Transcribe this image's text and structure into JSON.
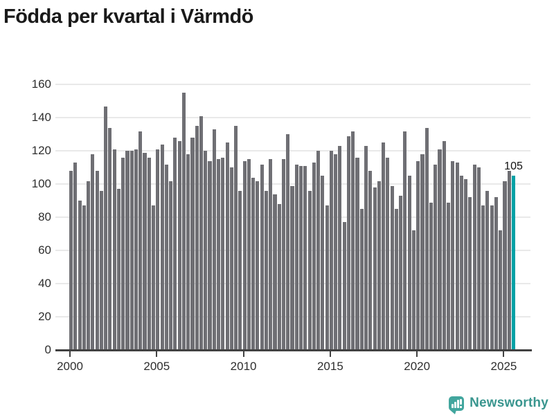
{
  "title": "Födda per kvartal i Värmdö",
  "chart_data": {
    "type": "bar",
    "title": "Födda per kvartal i Värmdö",
    "frequency": "quarterly",
    "x_start": "2000 Q1",
    "x_end": "2025 Q3",
    "values": [
      108,
      113,
      90,
      87,
      102,
      118,
      108,
      96,
      147,
      134,
      121,
      97,
      116,
      120,
      120,
      121,
      132,
      119,
      116,
      87,
      121,
      124,
      112,
      102,
      128,
      126,
      155,
      118,
      128,
      135,
      141,
      120,
      114,
      133,
      115,
      116,
      125,
      110,
      135,
      96,
      114,
      115,
      104,
      102,
      112,
      96,
      115,
      94,
      88,
      115,
      130,
      99,
      112,
      111,
      111,
      96,
      113,
      120,
      105,
      87,
      120,
      118,
      123,
      77,
      129,
      132,
      116,
      85,
      123,
      108,
      98,
      102,
      125,
      116,
      99,
      85,
      93,
      132,
      105,
      72,
      114,
      118,
      134,
      89,
      112,
      121,
      126,
      89,
      114,
      113,
      105,
      103,
      92,
      112,
      110,
      87,
      96,
      87,
      92,
      72,
      102,
      108,
      105
    ],
    "highlight_index": 102,
    "highlight_label": "105",
    "highlight_color": "#00a1a5",
    "bar_color": "#6f6f74",
    "ylim": [
      0,
      160
    ],
    "yticks": [
      0,
      20,
      40,
      60,
      80,
      100,
      120,
      140,
      160
    ],
    "xticks": [
      2000,
      2005,
      2010,
      2015,
      2020,
      2025
    ],
    "grid": true,
    "legend": false,
    "gridline_color": "#e9e9e9",
    "axis_color": "#414141",
    "text_color": "#2e2e2e"
  },
  "branding": {
    "logo_text": "Newsworthy",
    "logo_text_color": "#3a968f",
    "logo_icon_color": "#42a69e"
  }
}
